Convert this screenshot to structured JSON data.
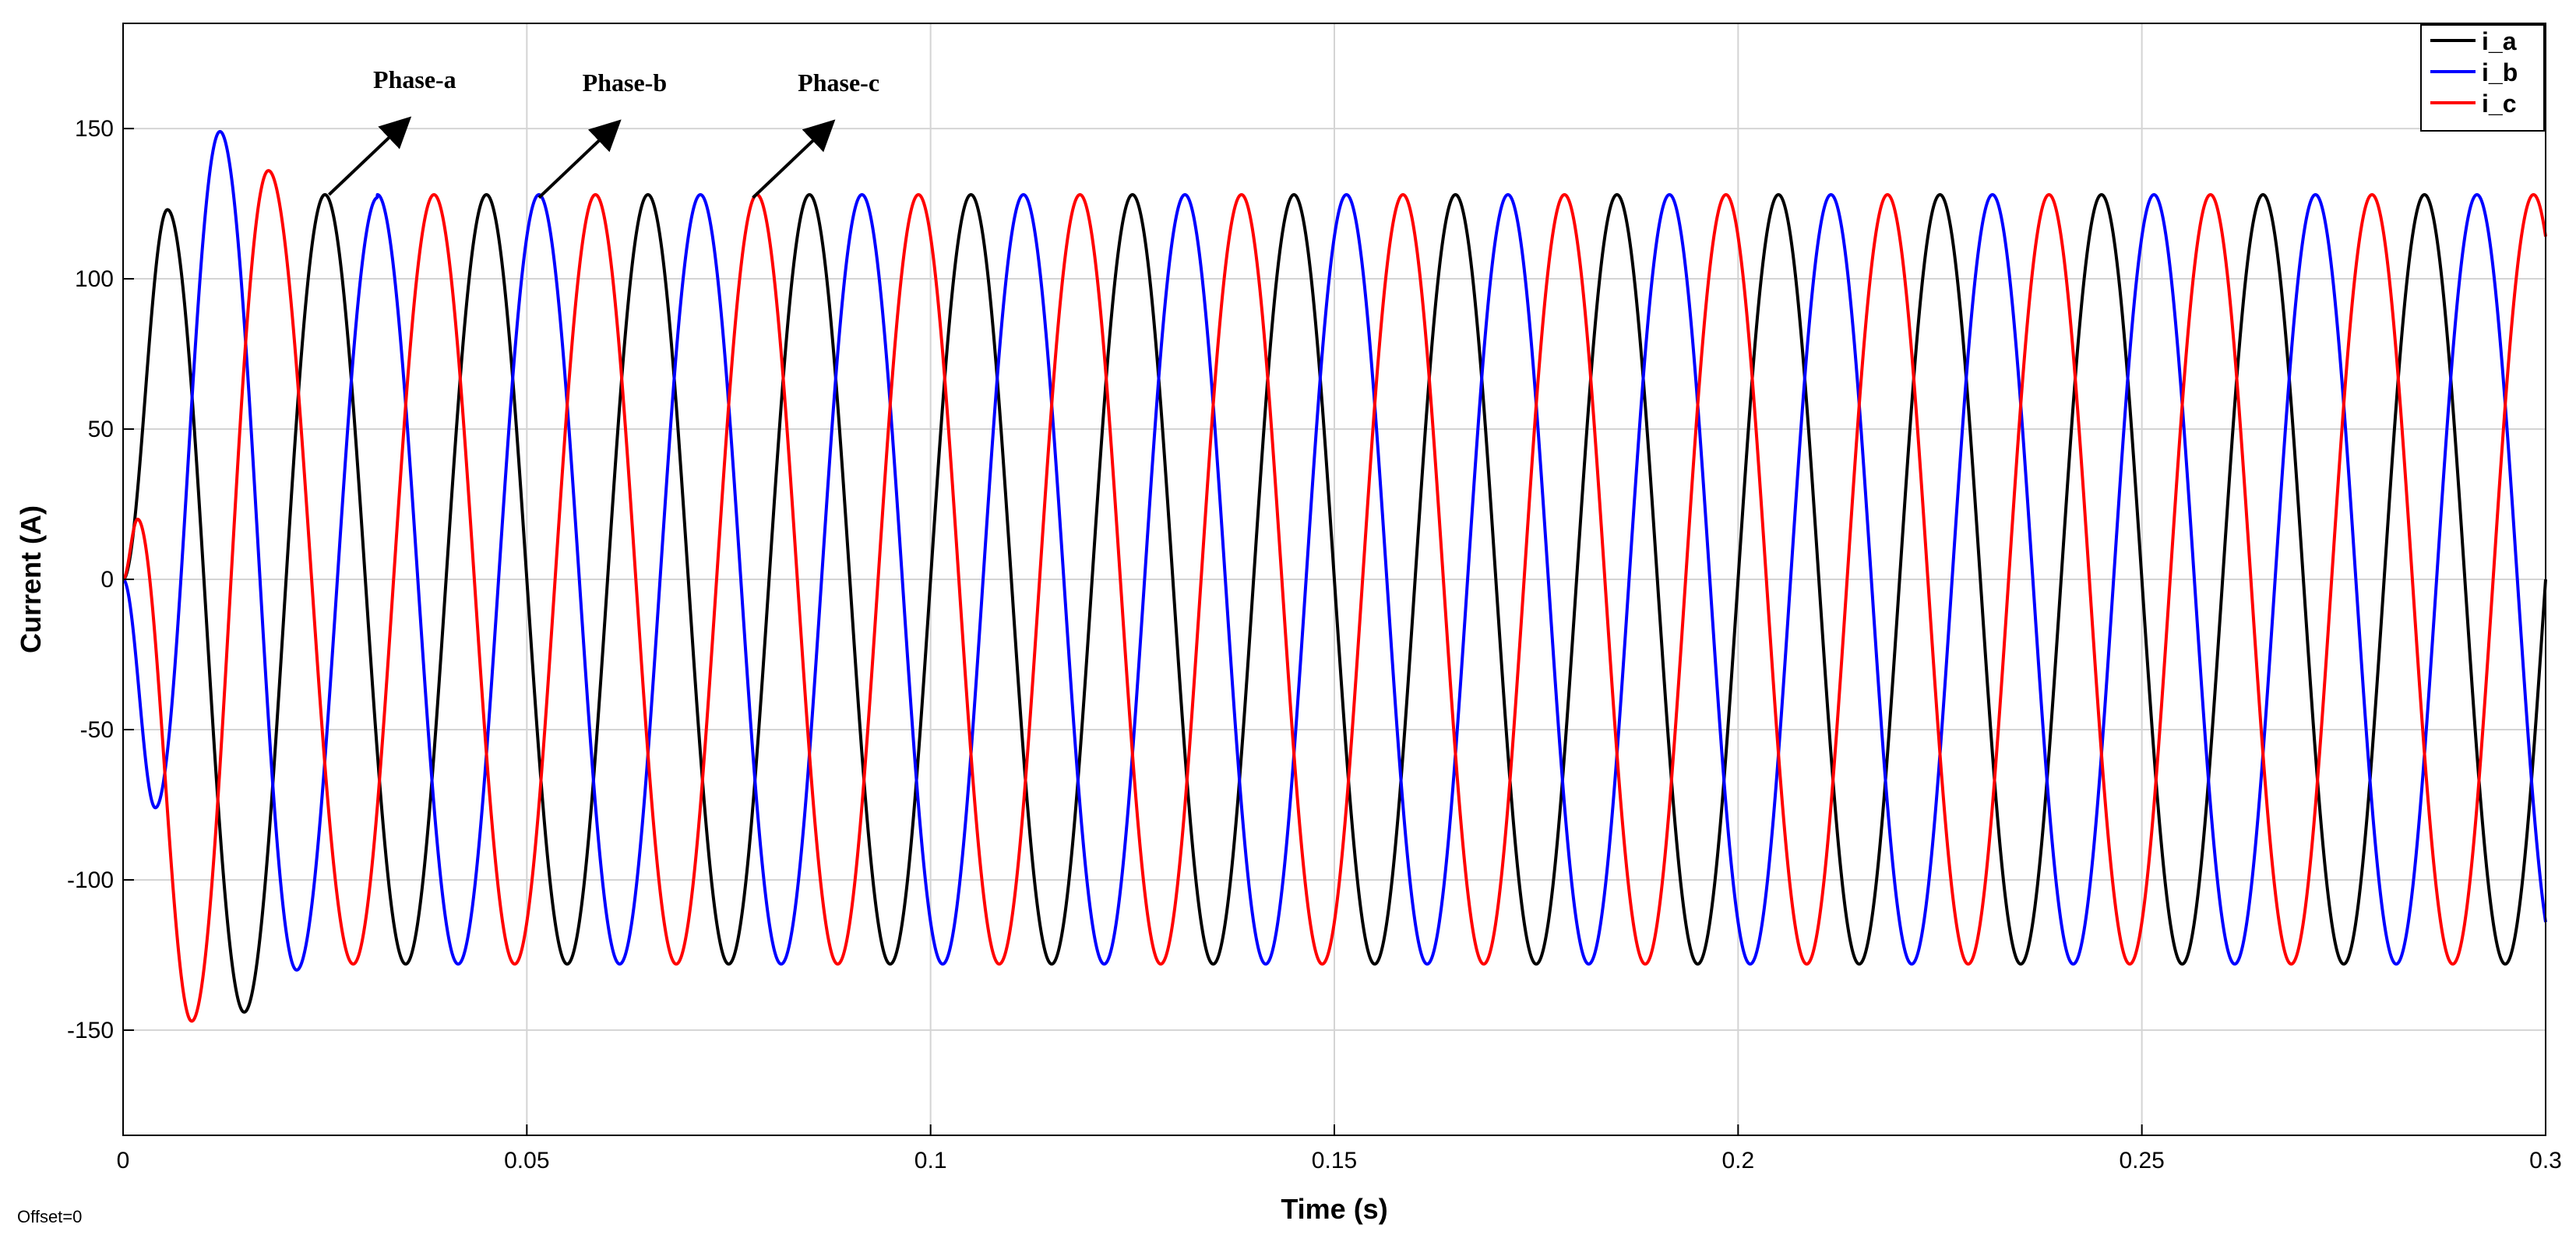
{
  "chart_data": {
    "type": "line",
    "title": "",
    "xlabel": "Time (s)",
    "ylabel": "Current (A)",
    "xlim": [
      0,
      0.3
    ],
    "ylim": [
      -185,
      185
    ],
    "grid": true,
    "legend_position": "top-right",
    "x_ticks": [
      0,
      0.05,
      0.1,
      0.15,
      0.2,
      0.25,
      0.3
    ],
    "x_tick_labels": [
      "0",
      "0.05",
      "0.1",
      "0.15",
      "0.2",
      "0.25",
      "0.3"
    ],
    "y_ticks": [
      -150,
      -100,
      -50,
      0,
      50,
      100,
      150
    ],
    "y_tick_labels": [
      "-150",
      "-100",
      "-50",
      "0",
      "50",
      "100",
      "150"
    ],
    "frequency_hz": 50,
    "steady_amplitude": 128,
    "series": [
      {
        "name": "i_a",
        "color": "#000000",
        "phase_deg": 0,
        "transient_points": [
          [
            0,
            0
          ],
          [
            0.0055,
            123
          ],
          [
            0.015,
            -144
          ],
          [
            0.025,
            128
          ]
        ]
      },
      {
        "name": "i_b",
        "color": "#0000ff",
        "phase_deg": -120,
        "transient_points": [
          [
            0,
            0
          ],
          [
            0.004,
            -76
          ],
          [
            0.012,
            149
          ],
          [
            0.0215,
            -130
          ],
          [
            0.0315,
            127
          ]
        ]
      },
      {
        "name": "i_c",
        "color": "#ff0000",
        "phase_deg": 120,
        "transient_points": [
          [
            0,
            0
          ],
          [
            0.0018,
            20
          ],
          [
            0.0085,
            -147
          ],
          [
            0.018,
            136
          ],
          [
            0.0285,
            -128
          ]
        ]
      }
    ],
    "annotations": [
      {
        "text": "Phase-a",
        "x": 0.0255,
        "y": 128
      },
      {
        "text": "Phase-b",
        "x": 0.0515,
        "y": 127
      },
      {
        "text": "Phase-c",
        "x": 0.078,
        "y": 127
      }
    ],
    "offset_label": "Offset=0"
  }
}
